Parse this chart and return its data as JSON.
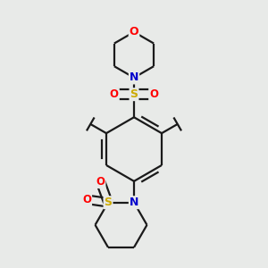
{
  "background_color": "#e8eae8",
  "bond_color": "#1a1a1a",
  "atom_colors": {
    "O": "#ff0000",
    "N": "#0000cc",
    "S": "#ccaa00",
    "C": "#1a1a1a"
  },
  "figsize": [
    3.0,
    3.0
  ],
  "dpi": 100,
  "lw": 1.6
}
